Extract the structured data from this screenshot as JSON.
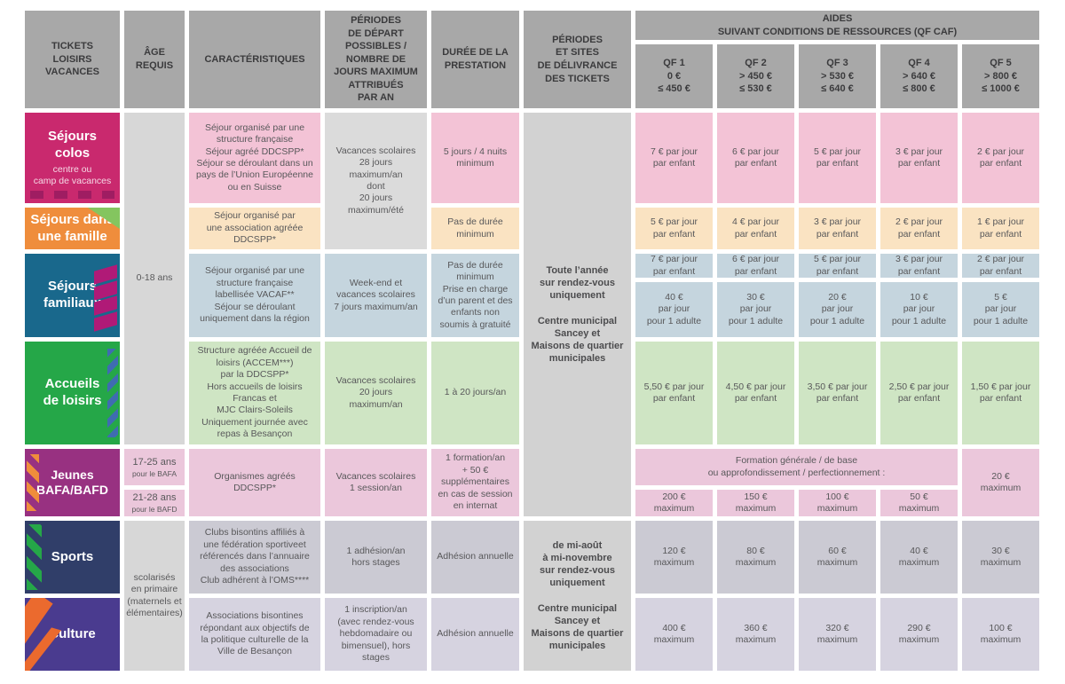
{
  "header": {
    "tickets": "TICKETS\nLOISIRS\nVACANCES",
    "age": "ÂGE\nREQUIS",
    "caracteristiques": "CARACTÉRISTIQUES",
    "periodes_depart": "PÉRIODES\nDE DÉPART\nPOSSIBLES /\nNOMBRE DE\nJOURS MAXIMUM\nATTRIBUÉS\nPAR AN",
    "duree": "DURÉE DE LA\nPRESTATION",
    "delivrance": "PÉRIODES\nET SITES\nDE DÉLIVRANCE\nDES TICKETS",
    "aides": "AIDES\nSUIVANT CONDITIONS DE RESSOURCES (QF CAF)",
    "qf": [
      "QF 1\n0 €\n≤ 450 €",
      "QF 2\n> 450 €\n≤ 530 €",
      "QF 3\n> 530 €\n≤ 640 €",
      "QF 4\n> 640 €\n≤ 800 €",
      "QF 5\n> 800 €\n≤ 1000 €"
    ]
  },
  "ages": {
    "range_0_18": "0-18 ans",
    "bafa_main": "17-25 ans",
    "bafa_sub": "pour le BAFA",
    "bafd_main": "21-28 ans",
    "bafd_sub": "pour le BAFD",
    "primaire": "scolarisés\nen primaire\n(maternels et\nélémentaires)"
  },
  "delivrance": {
    "toute_annee": "Toute l’année\nsur rendez-vous\nuniquement\n\nCentre municipal\nSancey et\nMaisons de quartier\nmunicipales",
    "mi_aout": "de mi-août\nà mi-novembre\nsur rendez-vous\nuniquement\n\nCentre municipal\nSancey et\nMaisons de quartier\nmunicipales"
  },
  "rows": {
    "colos": {
      "title": "Séjours\ncolos",
      "subtitle": "centre ou\ncamp de vacances",
      "caracteristiques": "Séjour organisé par une\nstructure française\nSéjour agréé DDCSPP*\nSéjour se déroulant dans un\npays de l’Union Européenne\nou en Suisse",
      "periodes_shared": "Vacances scolaires\n28 jours\nmaximum/an\ndont\n20 jours\nmaximum/été",
      "duree": "5 jours / 4 nuits\nminimum",
      "aides": [
        "7 € par jour\npar enfant",
        "6 € par jour\npar enfant",
        "5 € par jour\npar enfant",
        "3 € par jour\npar enfant",
        "2 € par jour\npar enfant"
      ]
    },
    "famille": {
      "title": "Séjours dans\nune famille",
      "caracteristiques": "Séjour organisé par\nune association agréée\nDDCSPP*",
      "duree": "Pas de durée\nminimum",
      "aides": [
        "5 € par jour\npar enfant",
        "4 € par jour\npar enfant",
        "3 € par jour\npar enfant",
        "2 € par jour\npar enfant",
        "1 € par jour\npar enfant"
      ]
    },
    "familiaux": {
      "title": "Séjours\nfamiliaux",
      "caracteristiques": "Séjour organisé par une\nstructure française\nlabellisée VACAF**\nSéjour se déroulant\nuniquement dans la région",
      "periodes": "Week-end et\nvacances scolaires\n7 jours maximum/an",
      "duree": "Pas de durée\nminimum\nPrise en charge\nd’un parent et des\nenfants non\nsoumis à gratuité",
      "aides_enfant": [
        "7 € par jour\npar enfant",
        "6 € par jour\npar enfant",
        "5 € par jour\npar enfant",
        "3 € par jour\npar enfant",
        "2 € par jour\npar enfant"
      ],
      "aides_adulte": [
        "40 €\npar jour\npour 1 adulte",
        "30 €\npar jour\npour 1 adulte",
        "20 €\npar jour\npour 1 adulte",
        "10 €\npar jour\npour 1 adulte",
        "5 €\npar jour\npour 1 adulte"
      ]
    },
    "loisirs": {
      "title": "Accueils\nde loisirs",
      "caracteristiques": "Structure agréée Accueil de\nloisirs (ACCEM***)\npar la DDCSPP*\nHors accueils de loisirs\nFrancas et\nMJC Clairs-Soleils\nUniquement journée avec\nrepas à Besançon",
      "periodes": "Vacances scolaires\n20 jours\nmaximum/an",
      "duree": "1 à 20 jours/an",
      "aides": [
        "5,50 € par jour\npar enfant",
        "4,50 € par jour\npar enfant",
        "3,50 € par jour\npar enfant",
        "2,50 € par jour\npar enfant",
        "1,50 € par jour\npar enfant"
      ]
    },
    "bafa": {
      "title": "Jeunes\nBAFA/BAFD",
      "caracteristiques": "Organismes agréés\nDDCSPP*",
      "periodes": "Vacances scolaires\n1 session/an",
      "duree": "1 formation/an\n+ 50 €\nsupplémentaires\nen cas de session\nen internat",
      "aides_banner": "Formation générale / de base\nou approfondissement / perfectionnement :",
      "aides": [
        "200 €\nmaximum",
        "150 €\nmaximum",
        "100 €\nmaximum",
        "50 €\nmaximum"
      ],
      "aide_qf5": "20 €\nmaximum"
    },
    "sports": {
      "title": "Sports",
      "caracteristiques": "Clubs bisontins affiliés à\nune fédération sportiveet\nréférencés dans l’annuaire\ndes associations\nClub adhérent à l’OMS****",
      "periodes": "1 adhésion/an\nhors stages",
      "duree": "Adhésion annuelle",
      "aides": [
        "120 €\nmaximum",
        "80 €\nmaximum",
        "60 €\nmaximum",
        "40 €\nmaximum",
        "30 €\nmaximum"
      ]
    },
    "culture": {
      "title": "Culture",
      "caracteristiques": "Associations bisontines\nrépondant aux objectifs de\nla politique culturelle de la\nVille de Besançon",
      "periodes": "1 inscription/an\n(avec rendez-vous\nhebdomadaire ou\nbimensuel), hors\nstages",
      "duree": "Adhésion annuelle",
      "aides": [
        "400 €\nmaximum",
        "360 €\nmaximum",
        "320 €\nmaximum",
        "290 €\nmaximum",
        "100 €\nmaximum"
      ]
    }
  },
  "colors": {
    "header_gray": "#a8a8a8",
    "colos": "#c9296e",
    "famille": "#ef8d3c",
    "familiaux": "#19688c",
    "loisirs": "#25a748",
    "bafa": "#983181",
    "sports": "#303e69",
    "culture": "#4a3b8f",
    "colos_light": "#f3c3d6",
    "famille_light": "#fae3c2",
    "familiaux_light": "#c5d5de",
    "loisirs_light": "#cfe5c4",
    "bafa_light": "#ebc7db",
    "sports_light": "#cbcad3",
    "culture_light": "#d6d3e0"
  }
}
